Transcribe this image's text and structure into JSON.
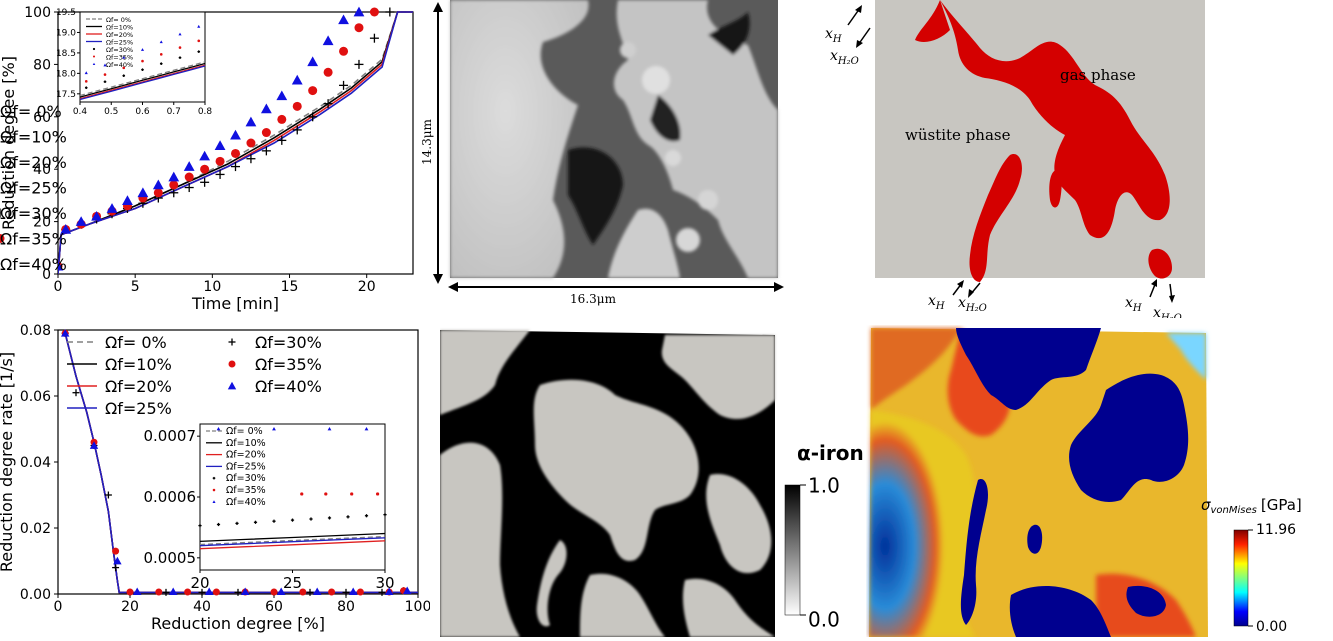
{
  "chart_data": [
    {
      "type": "line",
      "xlabel": "Time [min]",
      "ylabel": "Reduction degree [%]",
      "xlim": [
        0,
        23
      ],
      "ylim": [
        0,
        100
      ],
      "xticks": [
        "0",
        "5",
        "10",
        "15",
        "20"
      ],
      "yticks": [
        "0",
        "20",
        "40",
        "60",
        "80",
        "100"
      ],
      "legend_position": "lower-right",
      "series": [
        {
          "name": "Ωf= 0%",
          "style": "dashed",
          "color": "#808080",
          "x": [
            0,
            0.2,
            2,
            5,
            8,
            11,
            14,
            17,
            19,
            21,
            22,
            23
          ],
          "y": [
            0,
            15,
            19,
            26,
            34,
            43,
            53,
            64,
            72,
            82,
            100,
            100
          ]
        },
        {
          "name": "Ωf=10%",
          "style": "solid",
          "color": "#000000",
          "x": [
            0,
            0.2,
            2,
            5,
            8,
            11,
            14,
            17,
            19,
            21,
            22,
            23
          ],
          "y": [
            0,
            15,
            19,
            26,
            34,
            42,
            52,
            63,
            71,
            81,
            100,
            100
          ]
        },
        {
          "name": "Ωf=20%",
          "style": "solid",
          "color": "#e02020",
          "x": [
            0,
            0.2,
            2,
            5,
            8,
            11,
            14,
            17,
            19,
            21,
            22,
            23
          ],
          "y": [
            0,
            15,
            19,
            25,
            33,
            41,
            51,
            62,
            70,
            80,
            100,
            100
          ]
        },
        {
          "name": "Ωf=25%",
          "style": "solid",
          "color": "#2020c0",
          "x": [
            0,
            0.2,
            2,
            5,
            8,
            11,
            14,
            17,
            19,
            21,
            22,
            23
          ],
          "y": [
            0,
            15,
            19,
            25,
            33,
            41,
            50,
            61,
            69,
            79,
            100,
            100
          ]
        },
        {
          "name": "Ωf=30%",
          "style": "plus",
          "color": "#000000",
          "x": [
            0,
            0.5,
            1.5,
            2.5,
            3.5,
            4.5,
            5.5,
            6.5,
            7.5,
            8.5,
            9.5,
            10.5,
            11.5,
            12.5,
            13.5,
            14.5,
            15.5,
            16.5,
            17.5,
            18.5,
            19.5,
            20.5,
            21.5
          ],
          "y": [
            3,
            17,
            19,
            21,
            23,
            25,
            27,
            29,
            31,
            33,
            35,
            38,
            41,
            44,
            47,
            51,
            55,
            60,
            65,
            72,
            80,
            90,
            100
          ]
        },
        {
          "name": "Ωf=35%",
          "style": "circle",
          "color": "#e01010",
          "x": [
            0,
            0.5,
            1.5,
            2.5,
            3.5,
            4.5,
            5.5,
            6.5,
            7.5,
            8.5,
            9.5,
            10.5,
            11.5,
            12.5,
            13.5,
            14.5,
            15.5,
            16.5,
            17.5,
            18.5,
            19.5,
            20.5
          ],
          "y": [
            3,
            17,
            19,
            22,
            24,
            26,
            29,
            31,
            34,
            37,
            40,
            43,
            46,
            50,
            54,
            59,
            64,
            70,
            77,
            85,
            94,
            100
          ]
        },
        {
          "name": "Ωf=40%",
          "style": "triangle",
          "color": "#1010e0",
          "x": [
            0,
            0.5,
            1.5,
            2.5,
            3.5,
            4.5,
            5.5,
            6.5,
            7.5,
            8.5,
            9.5,
            10.5,
            11.5,
            12.5,
            13.5,
            14.5,
            15.5,
            16.5,
            17.5,
            18.5,
            19.5
          ],
          "y": [
            3,
            17,
            20,
            22,
            25,
            28,
            31,
            34,
            37,
            41,
            45,
            49,
            53,
            58,
            63,
            68,
            74,
            81,
            89,
            97,
            100
          ]
        }
      ],
      "inset": {
        "xlim": [
          0.4,
          0.8
        ],
        "ylim": [
          17.3,
          19.5
        ],
        "xticks": [
          "0.4",
          "0.5",
          "0.6",
          "0.7",
          "0.8"
        ],
        "yticks": [
          "17.5",
          "18.0",
          "18.5",
          "19.0",
          "19.5"
        ],
        "legend": [
          "Ωf= 0%",
          "Ωf=10%",
          "Ωf=20%",
          "Ωf=25%",
          "Ωf=30%",
          "Ωf=35%",
          "Ωf=40%"
        ]
      }
    },
    {
      "type": "line",
      "xlabel": "Reduction degree [%]",
      "ylabel": "Reduction degree rate [1/s]",
      "xlim": [
        0,
        100
      ],
      "ylim": [
        0,
        0.08
      ],
      "xticks": [
        "0",
        "20",
        "40",
        "60",
        "80",
        "100"
      ],
      "yticks": [
        "0.00",
        "0.02",
        "0.04",
        "0.06",
        "0.08"
      ],
      "legend_position": "top",
      "series": [
        {
          "name": "Ωf= 0%",
          "style": "dashed",
          "color": "#808080",
          "x": [
            2,
            5,
            8,
            10,
            12,
            14,
            15.5,
            16.5,
            17,
            100
          ],
          "y": [
            0.079,
            0.066,
            0.055,
            0.046,
            0.036,
            0.025,
            0.012,
            0.004,
            0.0005,
            0.0005
          ]
        },
        {
          "name": "Ωf=10%",
          "style": "solid",
          "color": "#000000",
          "x": [
            2,
            5,
            8,
            10,
            12,
            14,
            15.5,
            16.5,
            17,
            100
          ],
          "y": [
            0.079,
            0.066,
            0.055,
            0.046,
            0.036,
            0.025,
            0.012,
            0.004,
            0.0005,
            0.0005
          ]
        },
        {
          "name": "Ωf=20%",
          "style": "solid",
          "color": "#e02020",
          "x": [
            2,
            5,
            8,
            10,
            12,
            14,
            15.5,
            16.5,
            17,
            100
          ],
          "y": [
            0.079,
            0.066,
            0.055,
            0.046,
            0.036,
            0.025,
            0.012,
            0.004,
            0.0005,
            0.0005
          ]
        },
        {
          "name": "Ωf=25%",
          "style": "solid",
          "color": "#2020c0",
          "x": [
            2,
            5,
            8,
            10,
            12,
            14,
            15.5,
            16.5,
            17,
            100
          ],
          "y": [
            0.079,
            0.066,
            0.055,
            0.046,
            0.036,
            0.025,
            0.012,
            0.004,
            0.0005,
            0.0005
          ]
        },
        {
          "name": "Ωf=30%",
          "style": "plus",
          "color": "#000000",
          "x": [
            2,
            5,
            10,
            14,
            16,
            20,
            30,
            40,
            50,
            60,
            70,
            80,
            90,
            96
          ],
          "y": [
            0.079,
            0.061,
            0.045,
            0.03,
            0.008,
            0.0005,
            0.0005,
            0.0005,
            0.0005,
            0.0005,
            0.0005,
            0.0005,
            0.0005,
            0.001
          ]
        },
        {
          "name": "Ωf=35%",
          "style": "circle",
          "color": "#e01010",
          "x": [
            2,
            10,
            16,
            20,
            28,
            36,
            44,
            52,
            60,
            68,
            76,
            84,
            92,
            96
          ],
          "y": [
            0.079,
            0.046,
            0.013,
            0.0006,
            0.0006,
            0.0006,
            0.0006,
            0.0006,
            0.0006,
            0.0006,
            0.0006,
            0.0006,
            0.0006,
            0.001
          ]
        },
        {
          "name": "Ωf=40%",
          "style": "triangle",
          "color": "#1010e0",
          "x": [
            2,
            10,
            16.5,
            22,
            32,
            42,
            52,
            62,
            72,
            82,
            92,
            97
          ],
          "y": [
            0.079,
            0.045,
            0.01,
            0.0007,
            0.0007,
            0.0007,
            0.0007,
            0.0007,
            0.0007,
            0.0007,
            0.0007,
            0.001
          ]
        }
      ],
      "inset": {
        "xlim": [
          20,
          30
        ],
        "ylim": [
          0.00048,
          0.00072
        ],
        "xticks": [
          "20",
          "25",
          "30"
        ],
        "yticks": [
          "0.0005",
          "0.0006",
          "0.0007"
        ],
        "legend": [
          "Ωf= 0%",
          "Ωf=10%",
          "Ωf=20%",
          "Ωf=25%",
          "Ωf=30%",
          "Ωf=35%",
          "Ωf=40%"
        ]
      }
    }
  ],
  "sem": {
    "height_label": "14.3μm",
    "width_label": "16.3μm"
  },
  "schematic": {
    "gas_label": "gas phase",
    "wustite_label": "wüstite phase",
    "flux_h": "x",
    "flux_h_sub": "H",
    "flux_h2o": "x",
    "flux_h2o_sub": "H₂O",
    "colors": {
      "gas": "#d40000",
      "background": "#c8c6c1"
    }
  },
  "iron_map": {
    "colorbar_title": "α-iron",
    "colorbar_max": "1.0",
    "colorbar_min": "0.0"
  },
  "stress_map": {
    "colorbar_title_symbol": "σ",
    "colorbar_title_sub": "vonMises",
    "colorbar_title_unit": "[GPa]",
    "colorbar_max": "11.96",
    "colorbar_min": "0.00"
  }
}
